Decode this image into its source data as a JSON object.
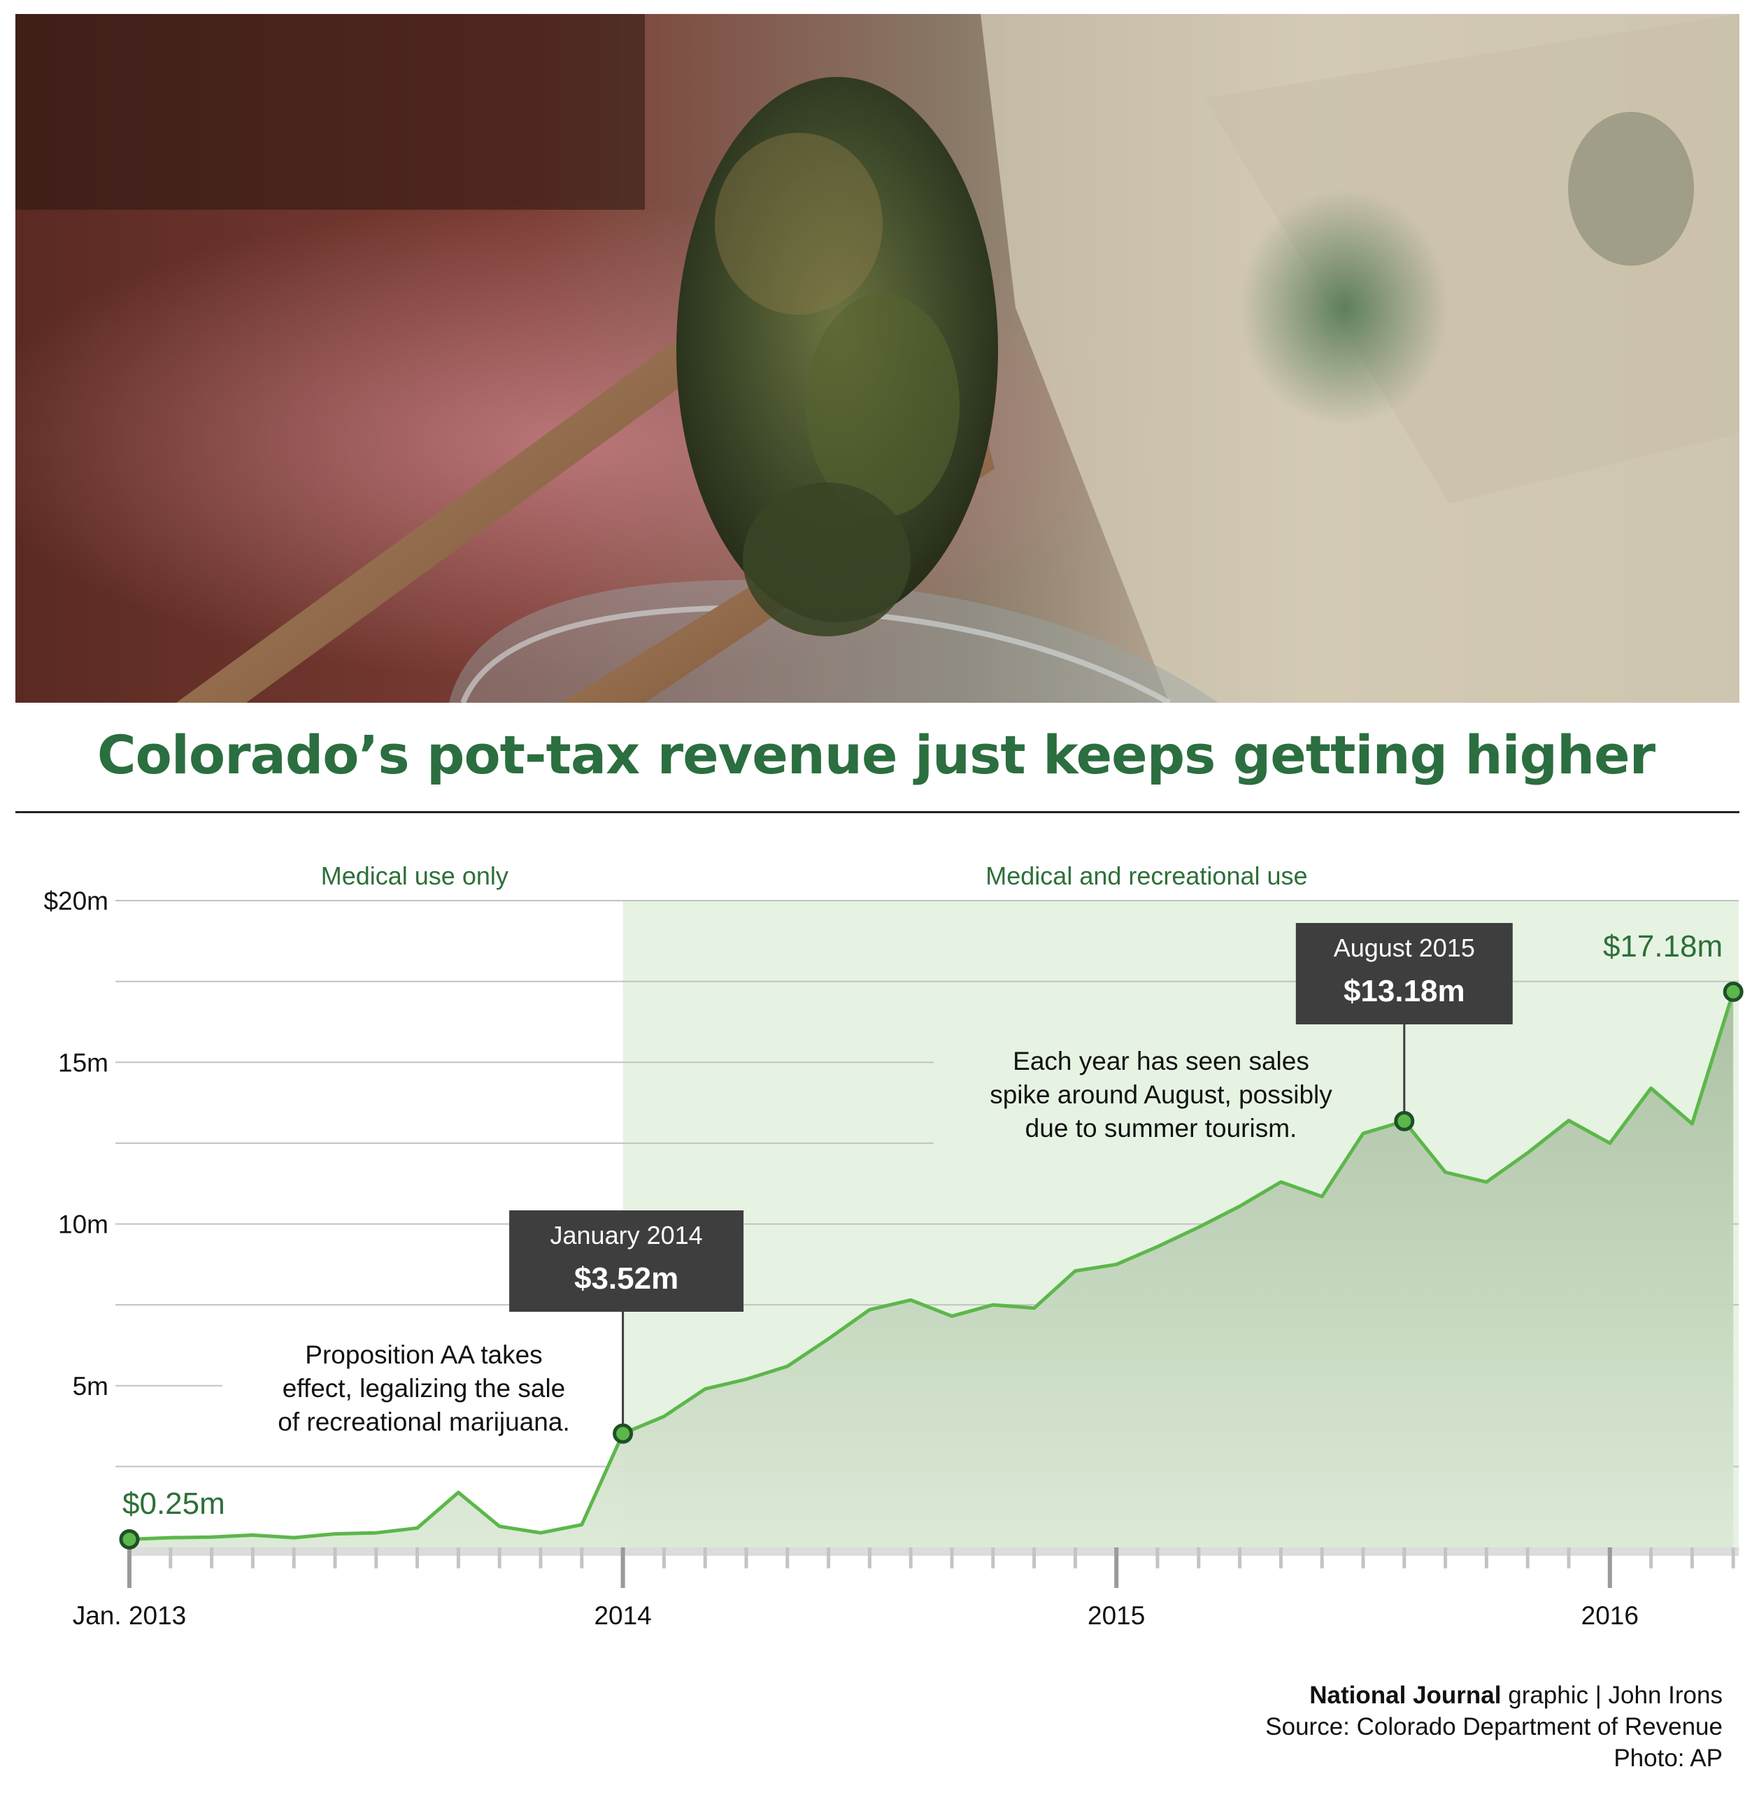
{
  "title": "Colorado’s pot-tax revenue just keeps getting higher",
  "photo": {
    "description_icon": "photo-marijuana-bud-and-dollar-bill"
  },
  "colors": {
    "title": "#2b6e3f",
    "line": "#5cb74a",
    "region": "#e6f3e2",
    "callout_bg": "#3e3e3e",
    "dark_green": "#2e6f3a"
  },
  "chart_data": {
    "type": "area",
    "ylim": [
      0,
      20
    ],
    "y_ticks": [
      {
        "value": 20,
        "label": "$20m"
      },
      {
        "value": 15,
        "label": "15m"
      },
      {
        "value": 10,
        "label": "10m"
      },
      {
        "value": 5,
        "label": "5m"
      }
    ],
    "x_ticks": [
      {
        "index": 0,
        "label": "Jan. 2013"
      },
      {
        "index": 12,
        "label": "2014"
      },
      {
        "index": 24,
        "label": "2015"
      },
      {
        "index": 36,
        "label": "2016"
      }
    ],
    "x_start": "Jan. 2013",
    "months": 40,
    "values": [
      0.25,
      0.3,
      0.32,
      0.38,
      0.3,
      0.42,
      0.45,
      0.6,
      1.7,
      0.65,
      0.45,
      0.7,
      3.52,
      4.05,
      4.9,
      5.2,
      5.6,
      6.45,
      7.35,
      7.65,
      7.15,
      7.5,
      7.4,
      8.55,
      8.75,
      9.3,
      9.9,
      10.55,
      11.3,
      10.85,
      12.8,
      13.18,
      11.6,
      11.3,
      12.2,
      13.2,
      12.5,
      14.2,
      13.1,
      17.18
    ],
    "regions": [
      {
        "label": "Medical use only",
        "from_index": 0,
        "to_index": 12
      },
      {
        "label": "Medical and recreational use",
        "from_index": 12,
        "to_index": 39
      }
    ],
    "endpoint_labels": [
      {
        "index": 0,
        "label": "$0.25m"
      },
      {
        "index": 39,
        "label": "$17.18m"
      }
    ],
    "callouts": [
      {
        "index": 12,
        "date": "January 2014",
        "value": "$3.52m",
        "note": [
          "Proposition AA takes",
          "effect, legalizing the sale",
          "of recreational marijuana."
        ]
      },
      {
        "index": 31,
        "date": "August 2015",
        "value": "$13.18m",
        "note": [
          "Each year has seen sales",
          "spike around August, possibly",
          "due to summer tourism."
        ]
      }
    ]
  },
  "credits": {
    "outlet": "National Journal",
    "byline": " graphic | John Irons",
    "source": "Source: Colorado Department of Revenue",
    "photo": "Photo: AP"
  }
}
